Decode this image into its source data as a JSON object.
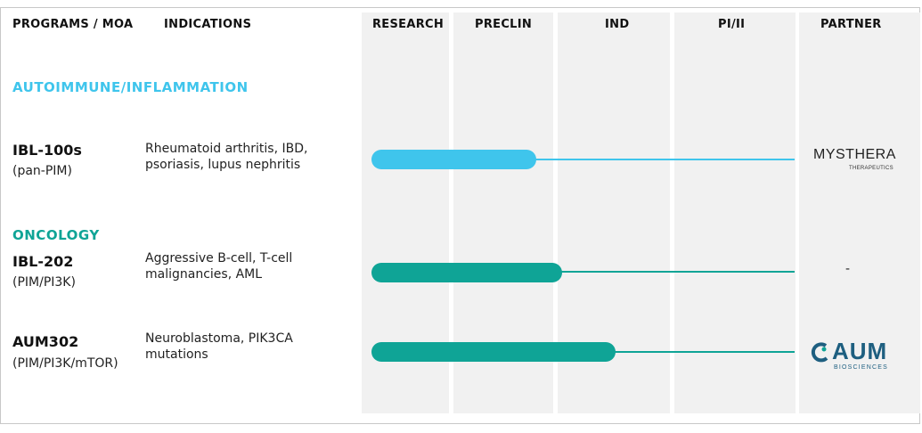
{
  "headers": {
    "programs": "PROGRAMS / MOA",
    "indications": "INDICATIONS",
    "research": "RESEARCH",
    "preclin": "PRECLIN",
    "ind": "IND",
    "phase": "PI/II",
    "partner": "PARTNER"
  },
  "colors": {
    "autoimmune": "#3fc5ec",
    "oncology": "#0fa496",
    "column_bg": "#f1f1f1"
  },
  "sections": {
    "autoimmune": "AUTOIMMUNE/INFLAMMATION",
    "oncology": "ONCOLOGY"
  },
  "programs": [
    {
      "name": "IBL-100s",
      "moa": "(pan-PIM)",
      "indications": "Rheumatoid arthritis, IBD,\npsoriasis, lupus nephritis",
      "stage_progress": "end of PRECLIN",
      "partner": {
        "name": "MYSTHERA",
        "sub": "THERAPEUTICS"
      }
    },
    {
      "name": "IBL-202",
      "moa": "(PIM/PI3K)",
      "indications": "Aggressive B-cell, T-cell\nmalignancies, AML",
      "stage_progress": "start of IND",
      "partner": {
        "name": "-"
      }
    },
    {
      "name": "AUM302",
      "moa": "(PIM/PI3K/mTOR)",
      "indications": "Neuroblastoma, PIK3CA\nmutations",
      "stage_progress": "mid IND",
      "partner": {
        "name": "AUM",
        "sub": "BIOSCIENCES"
      }
    }
  ]
}
